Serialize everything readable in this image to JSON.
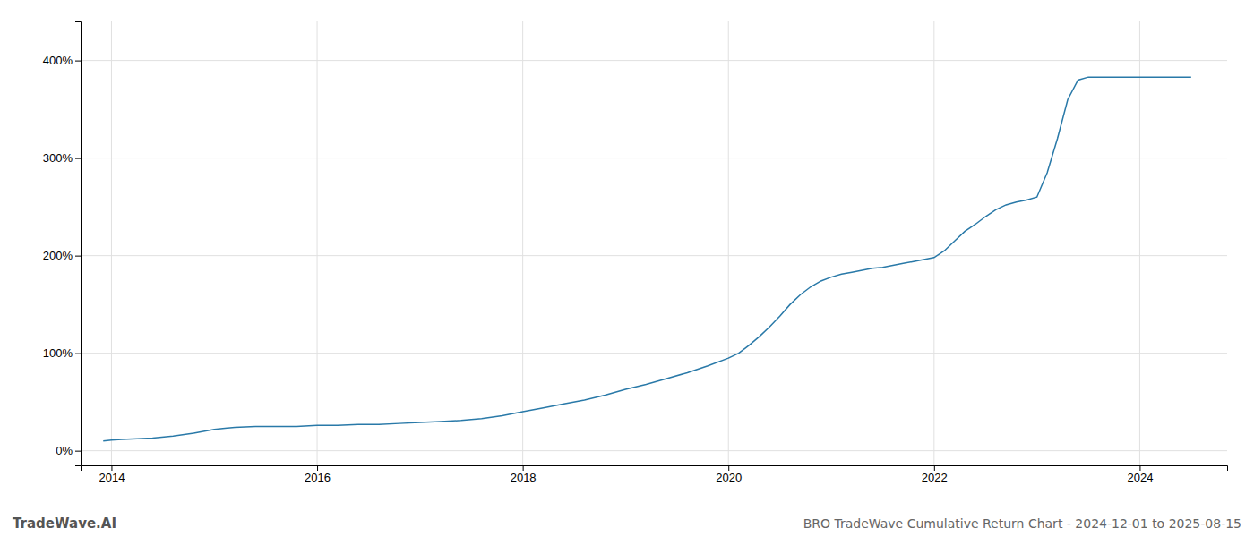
{
  "chart_data": {
    "type": "line",
    "title": "BRO TradeWave Cumulative Return Chart - 2024-12-01 to 2025-08-15",
    "annotations": [
      "TradeWave.AI"
    ],
    "color": "#2979a8",
    "grid": true,
    "x": [
      2013.92,
      2014.0,
      2014.1,
      2014.2,
      2014.4,
      2014.6,
      2014.8,
      2015.0,
      2015.2,
      2015.4,
      2015.6,
      2015.8,
      2016.0,
      2016.2,
      2016.4,
      2016.6,
      2016.8,
      2017.0,
      2017.2,
      2017.4,
      2017.6,
      2017.8,
      2018.0,
      2018.2,
      2018.4,
      2018.6,
      2018.8,
      2019.0,
      2019.2,
      2019.4,
      2019.6,
      2019.8,
      2020.0,
      2020.1,
      2020.2,
      2020.3,
      2020.4,
      2020.5,
      2020.6,
      2020.7,
      2020.8,
      2020.9,
      2021.0,
      2021.1,
      2021.2,
      2021.3,
      2021.4,
      2021.5,
      2021.6,
      2021.7,
      2021.8,
      2021.9,
      2022.0,
      2022.1,
      2022.2,
      2022.3,
      2022.4,
      2022.5,
      2022.6,
      2022.7,
      2022.8,
      2022.9,
      2023.0,
      2023.1,
      2023.2,
      2023.3,
      2023.4,
      2023.5,
      2023.6,
      2023.7,
      2023.8,
      2023.9,
      2024.0,
      2024.1,
      2024.2,
      2024.3,
      2024.4,
      2024.5
    ],
    "values": [
      10,
      11,
      11.5,
      12,
      13,
      15,
      18,
      22,
      24,
      25,
      25,
      25,
      26,
      26,
      27,
      27,
      28,
      29,
      30,
      31,
      33,
      36,
      40,
      44,
      48,
      52,
      57,
      63,
      68,
      74,
      80,
      87,
      95,
      100,
      108,
      117,
      127,
      138,
      150,
      160,
      168,
      174,
      178,
      181,
      183,
      185,
      187,
      188,
      190,
      192,
      194,
      196,
      198,
      205,
      215,
      225,
      232,
      240,
      247,
      252,
      255,
      257,
      260,
      285,
      320,
      360,
      380,
      383,
      383,
      383,
      383,
      383,
      383,
      383,
      383,
      383,
      383,
      383
    ],
    "xlim": [
      2013.7,
      2024.85
    ],
    "ylim": [
      -15,
      440
    ],
    "xticks": [
      2014,
      2016,
      2018,
      2020,
      2022,
      2024
    ],
    "yticks": [
      {
        "value": 0,
        "label": "0%"
      },
      {
        "value": 100,
        "label": "100%"
      },
      {
        "value": 200,
        "label": "200%"
      },
      {
        "value": 300,
        "label": "300%"
      },
      {
        "value": 400,
        "label": "400%"
      }
    ]
  }
}
